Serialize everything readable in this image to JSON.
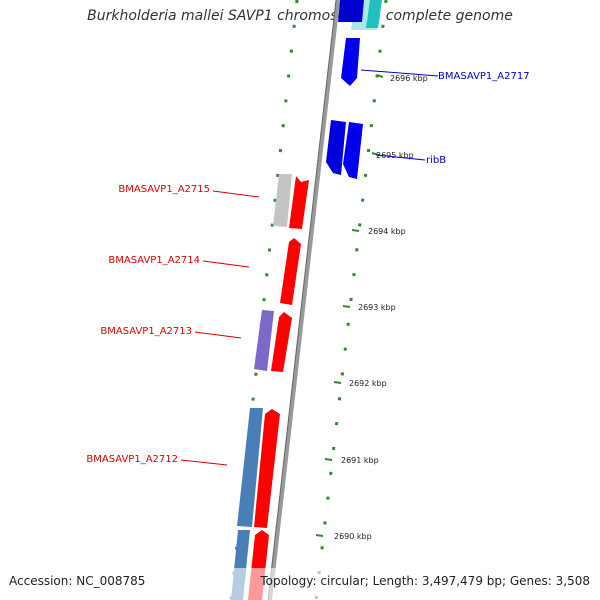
{
  "title": "Burkholderia mallei SAVP1 chromosome I, complete genome",
  "footer": {
    "accession": "Accession: NC_008785",
    "topology": "Topology: circular; Length: 3,497,479 bp; Genes: 3,508"
  },
  "ticks": [
    "2696 kbp",
    "2695 kbp",
    "2694 kbp",
    "2693 kbp",
    "2692 kbp",
    "2691 kbp",
    "2690 kbp"
  ],
  "gene_labels": [
    "BMASAVP1_A2717",
    "ribB",
    "BMASAVP1_A2715",
    "BMASAVP1_A2714",
    "BMASAVP1_A2713",
    "BMASAVP1_A2712"
  ],
  "colors": {
    "forward_gene": "#ff0000",
    "reverse_gene": "#0000ee",
    "pseudo_gene": "#c0c0c0",
    "misc_gene": "#7b68c8",
    "long_gene": "#4a7fb5",
    "rna_gene": "#2fc0c0",
    "gc_dots": "#2e8b2e",
    "backbone": "#888888"
  }
}
